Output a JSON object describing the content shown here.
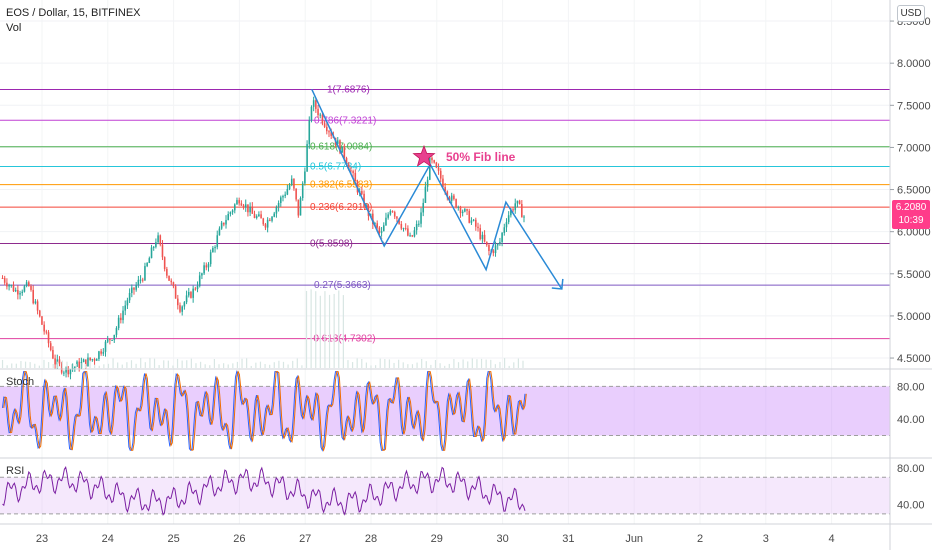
{
  "header": {
    "symbol": "EOS / Dollar, 15, BITFINEX",
    "volume_label": "Vol"
  },
  "currency_badge": "USD",
  "last_price": {
    "value": "6.2080",
    "countdown": "10:39",
    "color": "#ff3c8a"
  },
  "annotation": {
    "text": "50% Fib line",
    "star_color": "#e8418f"
  },
  "panes": {
    "stoch_label": "Stoch",
    "rsi_label": "RSI"
  },
  "chart_data": {
    "type": "candlestick",
    "price_axis": {
      "ticks": [
        8.5,
        8.0,
        7.5,
        7.0,
        6.5,
        6.0,
        5.5,
        5.0,
        4.5
      ],
      "tick_labels": [
        "8.5000",
        "8.0000",
        "7.5000",
        "7.0000",
        "6.5000",
        "6.0000",
        "5.5000",
        "5.0000",
        "4.5000"
      ],
      "ylim": [
        4.37,
        8.75
      ]
    },
    "x_axis": {
      "tick_labels": [
        "23",
        "24",
        "25",
        "26",
        "27",
        "28",
        "29",
        "30",
        "31",
        "Jun",
        "2",
        "3",
        "4"
      ]
    },
    "price_path": [
      {
        "t": -0.6,
        "p": 5.45
      },
      {
        "t": -0.4,
        "p": 5.3
      },
      {
        "t": -0.2,
        "p": 5.35
      },
      {
        "t": 0.0,
        "p": 4.9
      },
      {
        "t": 0.2,
        "p": 4.45
      },
      {
        "t": 0.35,
        "p": 4.35
      },
      {
        "t": 0.5,
        "p": 4.4
      },
      {
        "t": 0.8,
        "p": 4.5
      },
      {
        "t": 1.1,
        "p": 4.8
      },
      {
        "t": 1.3,
        "p": 5.2
      },
      {
        "t": 1.55,
        "p": 5.5
      },
      {
        "t": 1.75,
        "p": 5.95
      },
      {
        "t": 1.9,
        "p": 5.5
      },
      {
        "t": 2.1,
        "p": 5.1
      },
      {
        "t": 2.3,
        "p": 5.3
      },
      {
        "t": 2.5,
        "p": 5.6
      },
      {
        "t": 2.75,
        "p": 6.1
      },
      {
        "t": 3.0,
        "p": 6.4
      },
      {
        "t": 3.2,
        "p": 6.2
      },
      {
        "t": 3.4,
        "p": 6.1
      },
      {
        "t": 3.6,
        "p": 6.35
      },
      {
        "t": 3.8,
        "p": 6.6
      },
      {
        "t": 3.9,
        "p": 6.2
      },
      {
        "t": 4.0,
        "p": 6.8
      },
      {
        "t": 4.1,
        "p": 7.55
      },
      {
        "t": 4.25,
        "p": 7.35
      },
      {
        "t": 4.45,
        "p": 7.1
      },
      {
        "t": 4.6,
        "p": 6.9
      },
      {
        "t": 4.8,
        "p": 6.5
      },
      {
        "t": 5.0,
        "p": 6.15
      },
      {
        "t": 5.15,
        "p": 5.95
      },
      {
        "t": 5.3,
        "p": 6.3
      },
      {
        "t": 5.45,
        "p": 6.1
      },
      {
        "t": 5.6,
        "p": 5.9
      },
      {
        "t": 5.75,
        "p": 6.15
      },
      {
        "t": 5.9,
        "p": 6.85
      },
      {
        "t": 6.05,
        "p": 6.65
      },
      {
        "t": 6.2,
        "p": 6.4
      },
      {
        "t": 6.4,
        "p": 6.25
      },
      {
        "t": 6.6,
        "p": 6.05
      },
      {
        "t": 6.8,
        "p": 5.75
      },
      {
        "t": 6.95,
        "p": 5.85
      },
      {
        "t": 7.05,
        "p": 6.15
      },
      {
        "t": 7.2,
        "p": 6.35
      },
      {
        "t": 7.35,
        "p": 6.15
      }
    ],
    "zigzag_projection": [
      {
        "t": 4.1,
        "p": 7.69
      },
      {
        "t": 5.2,
        "p": 5.83
      },
      {
        "t": 5.9,
        "p": 6.8
      },
      {
        "t": 6.75,
        "p": 5.55
      },
      {
        "t": 7.05,
        "p": 6.35
      },
      {
        "t": 7.9,
        "p": 5.32
      }
    ],
    "fib_levels": [
      {
        "ratio": "1",
        "price": 7.6876,
        "label": "1(7.6876)",
        "color": "#9c27b0"
      },
      {
        "ratio": "0.786",
        "price": 7.3221,
        "label": "0.786(7.3221)",
        "color": "#c041d4"
      },
      {
        "ratio": "0.618",
        "price": 7.0084,
        "label": "0.618(7.0084)",
        "color": "#4caf50"
      },
      {
        "ratio": "0.5",
        "price": 6.7734,
        "label": "0.5(6.7734)",
        "color": "#26c6da"
      },
      {
        "ratio": "0.382",
        "price": 6.5583,
        "label": "0.382(6.5583)",
        "color": "#ff9800"
      },
      {
        "ratio": "0.236",
        "price": 6.2912,
        "label": "0.236(6.2912)",
        "color": "#f44336"
      },
      {
        "ratio": "0",
        "price": 5.8598,
        "label": "0(5.8598)",
        "color": "#8e2b8e"
      },
      {
        "ratio": "0.27",
        "price": 5.3663,
        "label": "0.27(5.3663)",
        "color": "#7e57c2"
      },
      {
        "ratio": "-0.618",
        "price": 4.7302,
        "label": "-0.618(4.7302)",
        "color": "#e040a0"
      }
    ],
    "stoch": {
      "ticks": [
        80,
        40
      ],
      "tick_labels": [
        "80.00",
        "40.00"
      ],
      "band": [
        20,
        80
      ],
      "ylim": [
        -5,
        100
      ]
    },
    "rsi": {
      "ticks": [
        80,
        40
      ],
      "tick_labels": [
        "80.00",
        "40.00"
      ],
      "band": [
        30,
        70
      ],
      "ylim": [
        20,
        90
      ]
    }
  }
}
